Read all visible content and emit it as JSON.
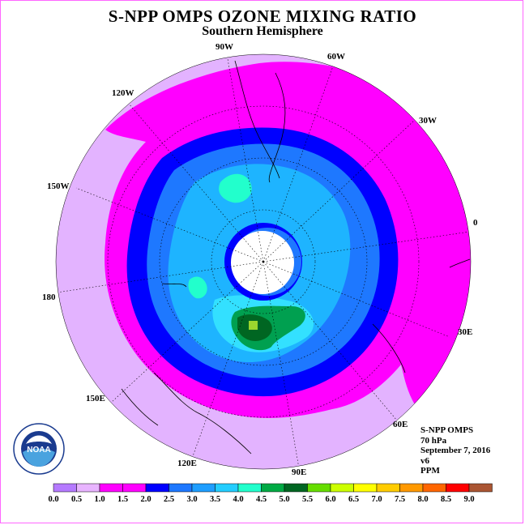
{
  "title": "S-NPP OMPS OZONE MIXING RATIO",
  "subtitle": "Southern Hemisphere",
  "longitude_labels": [
    {
      "text": "90W",
      "id": "90w"
    },
    {
      "text": "60W",
      "id": "60w"
    },
    {
      "text": "120W",
      "id": "120w"
    },
    {
      "text": "30W",
      "id": "30w"
    },
    {
      "text": "150W",
      "id": "150w"
    },
    {
      "text": "0",
      "id": "0"
    },
    {
      "text": "180",
      "id": "180"
    },
    {
      "text": "30E",
      "id": "30e"
    },
    {
      "text": "150E",
      "id": "150e"
    },
    {
      "text": "60E",
      "id": "60e"
    },
    {
      "text": "120E",
      "id": "120e"
    },
    {
      "text": "90E",
      "id": "90e"
    }
  ],
  "info": {
    "instrument": "S-NPP OMPS",
    "pressure_level": "70 hPa",
    "date": "September 7, 2016",
    "version": "v6",
    "units": "PPM"
  },
  "logo": {
    "text": "NOAA",
    "icon": "noaa-logo-icon"
  },
  "colorbar": {
    "ticks": [
      "0.0",
      "0.5",
      "1.0",
      "1.5",
      "2.0",
      "2.5",
      "3.0",
      "3.5",
      "4.0",
      "4.5",
      "5.0",
      "5.5",
      "6.0",
      "6.5",
      "7.0",
      "7.5",
      "8.0",
      "8.5",
      "9.0"
    ],
    "colors": [
      "#b57aff",
      "#e8b4ff",
      "#ff00ff",
      "#ff00ff",
      "#0000ff",
      "#1e78ff",
      "#1e9eff",
      "#23cdff",
      "#22ffcc",
      "#00aa44",
      "#006622",
      "#66dd00",
      "#ccff00",
      "#ffff00",
      "#ffcc00",
      "#ff9900",
      "#ff6600",
      "#ff0000",
      "#aa5533"
    ]
  },
  "map_colors": {
    "outer": "#e3b3ff",
    "magenta": "#ff00ff",
    "blue": "#0000ff",
    "mid_blue": "#1e78ff",
    "light_blue": "#1eb4ff",
    "cyan": "#33e0ff",
    "aqua": "#22ffcc",
    "green": "#00a050",
    "dark_green": "#006622",
    "lime": "#9bd62e",
    "pole": "#ffffff"
  }
}
